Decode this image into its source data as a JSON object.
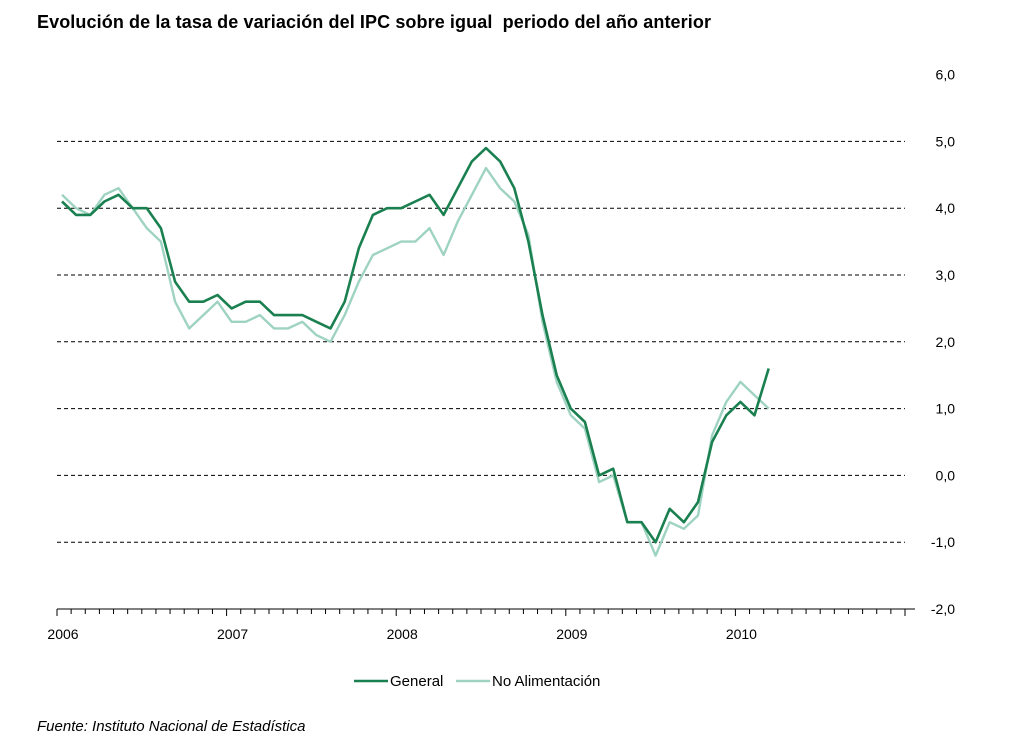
{
  "chart_data": {
    "type": "line",
    "title": "Evolución de la tasa de variación del IPC sobre igual  periodo del año anterior",
    "source": "Fuente: Instituto Nacional de Estadística",
    "xlabel": "",
    "ylabel": "",
    "ylim": [
      -2.0,
      6.0
    ],
    "yticks": [
      "6,0",
      "5,0",
      "4,0",
      "3,0",
      "2,0",
      "1,0",
      "0,0",
      "-1,0",
      "-2,0"
    ],
    "ytick_values": [
      6,
      5,
      4,
      3,
      2,
      1,
      0,
      -1,
      -2
    ],
    "xticks": [
      "2006",
      "2007",
      "2008",
      "2009",
      "2010"
    ],
    "x_start": "2006-01",
    "x_end": "2010-12",
    "grid": "horizontal dashed",
    "legend_position": "bottom-center",
    "colors": {
      "General": "#1a8050",
      "No Alimentación": "#9fd3c1"
    },
    "series": [
      {
        "name": "General",
        "values": [
          4.1,
          3.9,
          3.9,
          4.1,
          4.2,
          4.0,
          4.0,
          3.7,
          2.9,
          2.6,
          2.6,
          2.7,
          2.5,
          2.6,
          2.6,
          2.4,
          2.4,
          2.4,
          2.3,
          2.2,
          2.6,
          3.4,
          3.9,
          4.0,
          4.0,
          4.1,
          4.2,
          3.9,
          4.3,
          4.7,
          4.9,
          4.7,
          4.3,
          3.5,
          2.4,
          1.5,
          1.0,
          0.8,
          0.0,
          0.1,
          -0.7,
          -0.7,
          -1.0,
          -0.5,
          -0.7,
          -0.4,
          0.5,
          0.9,
          1.1,
          0.9,
          1.6
        ]
      },
      {
        "name": "No Alimentación",
        "values": [
          4.2,
          4.0,
          3.9,
          4.2,
          4.3,
          4.0,
          3.7,
          3.5,
          2.6,
          2.2,
          2.4,
          2.6,
          2.3,
          2.3,
          2.4,
          2.2,
          2.2,
          2.3,
          2.1,
          2.0,
          2.4,
          2.9,
          3.3,
          3.4,
          3.5,
          3.5,
          3.7,
          3.3,
          3.8,
          4.2,
          4.6,
          4.3,
          4.1,
          3.6,
          2.3,
          1.4,
          0.9,
          0.7,
          -0.1,
          0.0,
          -0.7,
          -0.7,
          -1.2,
          -0.7,
          -0.8,
          -0.6,
          0.6,
          1.1,
          1.4,
          1.2,
          1.0
        ]
      }
    ]
  }
}
